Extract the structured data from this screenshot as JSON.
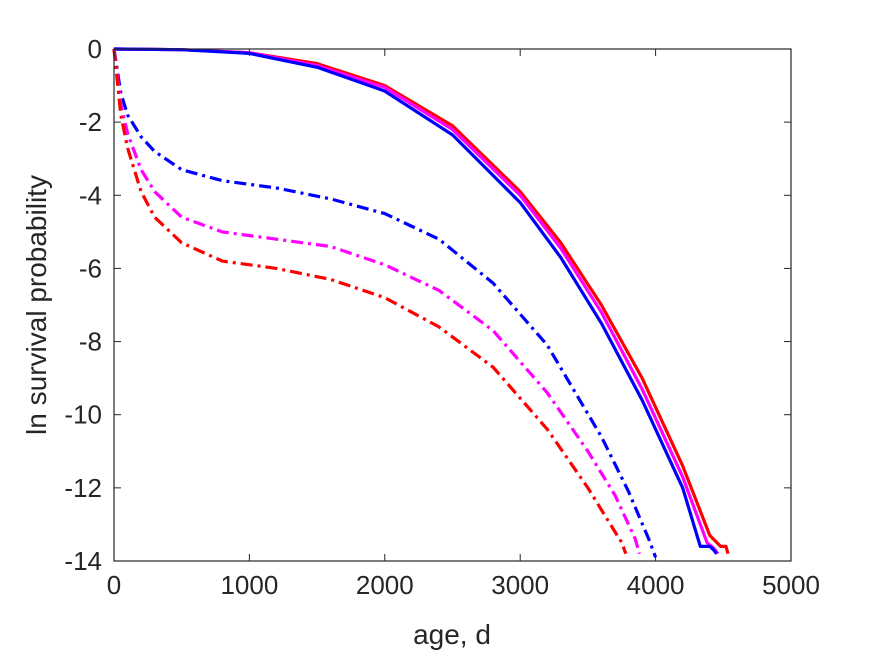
{
  "chart_data": {
    "type": "line",
    "title": "",
    "xlabel": "age, d",
    "ylabel": "ln survival probability",
    "xlim": [
      0,
      5000
    ],
    "ylim": [
      -14,
      0
    ],
    "xticks": [
      0,
      1000,
      2000,
      3000,
      4000,
      5000
    ],
    "yticks": [
      0,
      -2,
      -4,
      -6,
      -8,
      -10,
      -12,
      -14
    ],
    "xtick_labels": [
      "0",
      "1000",
      "2000",
      "3000",
      "4000",
      "5000"
    ],
    "ytick_labels": [
      "0",
      "-2",
      "-4",
      "-6",
      "-8",
      "-10",
      "-12",
      "-14"
    ],
    "grid": false,
    "legend": "none",
    "series": [
      {
        "color": "#ff0000",
        "style": "solid",
        "x": [
          0,
          500,
          1000,
          1500,
          2000,
          2500,
          3000,
          3300,
          3600,
          3900,
          4200,
          4400,
          4480,
          4520,
          4535
        ],
        "y": [
          0,
          -0.02,
          -0.1,
          -0.4,
          -1.0,
          -2.1,
          -3.9,
          -5.3,
          -7.0,
          -9.0,
          -11.4,
          -13.3,
          -13.6,
          -13.6,
          -13.8
        ]
      },
      {
        "color": "#ff00ff",
        "style": "solid",
        "x": [
          0,
          500,
          1000,
          1500,
          2000,
          2500,
          3000,
          3300,
          3600,
          3900,
          4200,
          4380,
          4430,
          4460
        ],
        "y": [
          0,
          -0.02,
          -0.1,
          -0.45,
          -1.05,
          -2.2,
          -4.0,
          -5.45,
          -7.2,
          -9.3,
          -11.7,
          -13.5,
          -13.65,
          -13.8
        ]
      },
      {
        "color": "#0000ff",
        "style": "solid",
        "x": [
          0,
          500,
          1000,
          1500,
          2000,
          2500,
          3000,
          3300,
          3600,
          3900,
          4200,
          4330,
          4400,
          4430,
          4450
        ],
        "y": [
          0,
          -0.02,
          -0.12,
          -0.5,
          -1.15,
          -2.35,
          -4.2,
          -5.7,
          -7.5,
          -9.6,
          -12.0,
          -13.6,
          -13.6,
          -13.7,
          -13.8
        ]
      },
      {
        "color": "#0000ff",
        "style": "dashdot",
        "x": [
          0,
          50,
          100,
          200,
          300,
          500,
          800,
          1200,
          1600,
          2000,
          2400,
          2800,
          3200,
          3600,
          3800,
          3950,
          4000
        ],
        "y": [
          0,
          -1.2,
          -1.8,
          -2.4,
          -2.8,
          -3.3,
          -3.6,
          -3.8,
          -4.1,
          -4.5,
          -5.2,
          -6.4,
          -8.1,
          -10.6,
          -12.1,
          -13.4,
          -13.9
        ]
      },
      {
        "color": "#ff00ff",
        "style": "dashdot",
        "x": [
          0,
          50,
          100,
          200,
          300,
          500,
          800,
          1200,
          1600,
          2000,
          2400,
          2800,
          3200,
          3500,
          3700,
          3850,
          3880
        ],
        "y": [
          0,
          -1.5,
          -2.3,
          -3.3,
          -3.9,
          -4.6,
          -5.0,
          -5.2,
          -5.4,
          -5.9,
          -6.6,
          -7.7,
          -9.4,
          -11.0,
          -12.2,
          -13.4,
          -13.8
        ]
      },
      {
        "color": "#ff0000",
        "style": "dashdot",
        "x": [
          0,
          50,
          100,
          200,
          300,
          500,
          800,
          1200,
          1600,
          2000,
          2400,
          2800,
          3200,
          3500,
          3650,
          3750,
          3780
        ],
        "y": [
          0,
          -1.8,
          -2.7,
          -3.9,
          -4.6,
          -5.3,
          -5.8,
          -6.0,
          -6.3,
          -6.8,
          -7.6,
          -8.7,
          -10.4,
          -12.0,
          -12.9,
          -13.5,
          -13.8
        ]
      }
    ]
  }
}
